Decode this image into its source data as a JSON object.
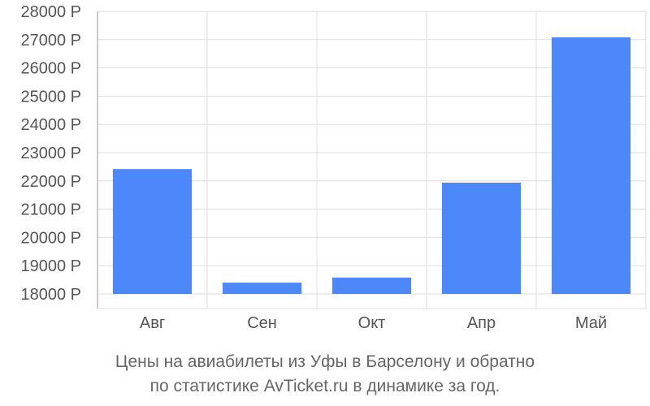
{
  "chart_data": {
    "type": "bar",
    "categories": [
      "Авг",
      "Сен",
      "Окт",
      "Апр",
      "Май"
    ],
    "values": [
      22420,
      18400,
      18580,
      21940,
      27080
    ],
    "ylim": [
      18000,
      28000
    ],
    "yticks": [
      18000,
      19000,
      20000,
      21000,
      22000,
      23000,
      24000,
      25000,
      26000,
      27000,
      28000
    ],
    "tick_suffix": " Р",
    "grid": true,
    "bar_color": "#4d88fb",
    "grid_color": "#dddddd"
  },
  "caption": {
    "line1": "Цены на авиабилеты из Уфы в Барселону и обратно",
    "line2": "по статистике AvTicket.ru в динамике за год."
  }
}
